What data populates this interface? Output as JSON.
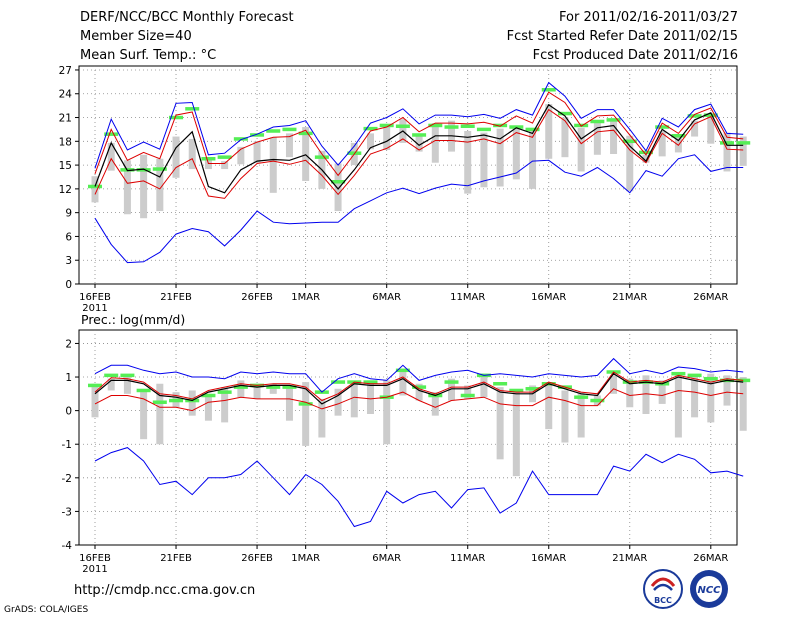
{
  "header": {
    "title": "DERF/NCC/BCC Monthly Forecast",
    "member_size": "Member Size=40",
    "variable": "Mean Surf. Temp.: °C",
    "period": "For 2011/02/16-2011/03/27",
    "refer_date": "Fcst Started Refer Date 2011/02/15",
    "produced_date": "Fcst Produced Date 2011/02/16"
  },
  "footer": {
    "url": "http://cmdp.ncc.cma.gov.cn",
    "credit": "GrADS: COLA/IGES",
    "logo_left_text": "BCC",
    "logo_right_text": "NCC"
  },
  "colors": {
    "envelope": "#0000ee",
    "spread": "#dd0000",
    "mean": "#000000",
    "observed_bar": "#cccccc",
    "climatology": "#55ee55"
  },
  "chart_data": [
    {
      "type": "line",
      "title": "Mean Surf. Temp.: °C",
      "x_tick_labels": [
        "16FEB",
        "21FEB",
        "26FEB",
        "1MAR",
        "6MAR",
        "11MAR",
        "16MAR",
        "21MAR",
        "26MAR"
      ],
      "x_tick_days": [
        0,
        5,
        10,
        13,
        18,
        23,
        28,
        33,
        38
      ],
      "year_label": "2011",
      "xlim": [
        0,
        39
      ],
      "ylim": [
        0,
        27.5
      ],
      "y_ticks": [
        0,
        3,
        6,
        9,
        12,
        15,
        18,
        21,
        24,
        27
      ],
      "series": [
        {
          "name": "max",
          "values": [
            14.6,
            20.8,
            16.9,
            17.9,
            17.0,
            22.8,
            22.9,
            16.3,
            16.5,
            18.2,
            18.9,
            19.8,
            20.0,
            20.6,
            17.4,
            15.0,
            17.4,
            20.3,
            21.0,
            22.1,
            20.2,
            21.3,
            21.3,
            21.1,
            21.4,
            20.9,
            22.0,
            21.3,
            25.4,
            23.7,
            20.9,
            22.0,
            22.0,
            19.5,
            16.8,
            20.9,
            19.8,
            22.0,
            22.7,
            19.0,
            18.9
          ]
        },
        {
          "name": "upper",
          "values": [
            13.9,
            19.5,
            15.6,
            16.6,
            15.8,
            21.3,
            21.7,
            15.2,
            15.2,
            17.0,
            17.9,
            18.5,
            18.6,
            19.4,
            16.4,
            13.7,
            16.4,
            19.3,
            19.8,
            21.0,
            19.2,
            20.3,
            20.3,
            20.2,
            20.4,
            19.9,
            21.2,
            20.3,
            24.2,
            22.9,
            19.9,
            21.2,
            21.3,
            18.8,
            16.3,
            20.3,
            19.0,
            21.4,
            22.2,
            18.5,
            18.3
          ]
        },
        {
          "name": "mean",
          "values": [
            12.3,
            17.8,
            14.3,
            14.5,
            13.5,
            17.2,
            19.2,
            12.3,
            11.5,
            14.4,
            15.5,
            15.7,
            15.6,
            16.3,
            14.4,
            12.0,
            14.4,
            17.2,
            18.0,
            19.3,
            17.5,
            18.7,
            18.7,
            18.5,
            18.8,
            18.3,
            19.7,
            19.0,
            22.6,
            21.2,
            18.3,
            19.7,
            20.0,
            17.4,
            15.5,
            19.5,
            18.1,
            20.7,
            21.6,
            17.5,
            17.5
          ]
        },
        {
          "name": "lower",
          "values": [
            11.3,
            15.8,
            12.7,
            13.0,
            12.0,
            14.7,
            15.8,
            11.1,
            10.8,
            13.3,
            15.2,
            15.5,
            15.1,
            15.6,
            13.7,
            11.3,
            13.7,
            16.4,
            17.1,
            18.3,
            16.9,
            18.1,
            18.1,
            17.9,
            18.3,
            17.7,
            19.1,
            18.5,
            22.0,
            20.6,
            17.7,
            19.2,
            19.4,
            16.9,
            15.3,
            19.0,
            17.5,
            20.2,
            21.1,
            17.0,
            16.9
          ]
        },
        {
          "name": "min",
          "values": [
            8.3,
            5.0,
            2.7,
            2.8,
            4.0,
            6.3,
            7.0,
            6.6,
            4.8,
            6.8,
            9.2,
            7.8,
            7.6,
            7.7,
            7.8,
            7.8,
            9.5,
            10.5,
            11.5,
            12.1,
            11.4,
            12.1,
            12.6,
            12.4,
            13.0,
            13.5,
            14.0,
            15.5,
            15.6,
            14.1,
            13.6,
            14.7,
            13.3,
            11.5,
            14.3,
            13.6,
            15.8,
            16.3,
            14.2,
            14.7,
            14.7
          ]
        },
        {
          "name": "observed_bar_top",
          "values": [
            13.6,
            17.8,
            15.6,
            16.3,
            15.8,
            18.6,
            18.3,
            16.0,
            15.5,
            17.3,
            18.0,
            18.5,
            19.0,
            19.8,
            16.8,
            15.2,
            17.8,
            19.0,
            19.8,
            20.8,
            18.9,
            20.3,
            20.6,
            19.3,
            19.1,
            19.6,
            20.0,
            19.5,
            22.7,
            21.0,
            19.7,
            20.4,
            20.6,
            18.7,
            16.3,
            19.3,
            18.6,
            20.6,
            21.2,
            19.1,
            18.6
          ]
        },
        {
          "name": "observed_bar_bottom",
          "values": [
            10.3,
            14.3,
            8.8,
            8.3,
            9.2,
            13.4,
            14.5,
            14.5,
            14.5,
            15.1,
            15.3,
            11.5,
            16.0,
            13.0,
            12.0,
            9.2,
            15.0,
            17.0,
            16.9,
            17.8,
            16.7,
            15.3,
            16.7,
            11.4,
            12.2,
            12.3,
            13.2,
            12.0,
            15.8,
            16.0,
            14.2,
            16.3,
            16.4,
            11.7,
            15.3,
            16.1,
            16.6,
            18.6,
            17.7,
            14.2,
            14.9
          ]
        },
        {
          "name": "climatology",
          "values": [
            12.3,
            18.9,
            14.4,
            14.4,
            14.5,
            21.0,
            22.1,
            15.8,
            16.0,
            18.3,
            18.8,
            19.3,
            19.5,
            19.0,
            16.0,
            12.9,
            16.5,
            19.6,
            20.0,
            19.9,
            18.8,
            20.0,
            19.8,
            19.9,
            19.5,
            20.0,
            19.8,
            19.5,
            24.5,
            21.5,
            20.0,
            20.5,
            20.7,
            18.0,
            16.6,
            19.8,
            18.7,
            21.2,
            21.3,
            17.8,
            17.8
          ]
        }
      ]
    },
    {
      "type": "line",
      "title": "Prec.: log(mm/d)",
      "x_tick_labels": [
        "16FEB",
        "21FEB",
        "26FEB",
        "1MAR",
        "6MAR",
        "11MAR",
        "16MAR",
        "21MAR",
        "26MAR"
      ],
      "x_tick_days": [
        0,
        5,
        10,
        13,
        18,
        23,
        28,
        33,
        38
      ],
      "year_label": "2011",
      "xlim": [
        0,
        39
      ],
      "ylim": [
        -4,
        2.4
      ],
      "y_ticks": [
        -4,
        -3,
        -2,
        -1,
        0,
        1,
        2
      ],
      "series": [
        {
          "name": "max",
          "values": [
            1.1,
            1.35,
            1.35,
            1.2,
            1.1,
            1.15,
            1.0,
            1.0,
            0.95,
            1.15,
            1.1,
            1.15,
            1.1,
            1.1,
            0.55,
            0.95,
            1.1,
            0.95,
            0.9,
            1.35,
            0.9,
            1.05,
            1.15,
            1.2,
            1.05,
            1.1,
            1.05,
            1.0,
            1.1,
            1.05,
            1.0,
            1.05,
            1.55,
            1.1,
            1.2,
            1.1,
            1.3,
            1.25,
            1.15,
            1.2,
            1.15
          ]
        },
        {
          "name": "upper",
          "values": [
            0.55,
            0.98,
            0.95,
            0.85,
            0.5,
            0.45,
            0.35,
            0.6,
            0.7,
            0.8,
            0.75,
            0.8,
            0.8,
            0.7,
            0.3,
            0.5,
            0.85,
            0.8,
            0.8,
            1.0,
            0.65,
            0.5,
            0.7,
            0.7,
            0.85,
            0.6,
            0.55,
            0.55,
            0.85,
            0.7,
            0.55,
            0.5,
            1.15,
            0.85,
            0.9,
            0.85,
            1.05,
            0.95,
            0.85,
            0.95,
            0.9
          ]
        },
        {
          "name": "mean",
          "values": [
            0.5,
            0.9,
            0.9,
            0.8,
            0.45,
            0.4,
            0.3,
            0.55,
            0.65,
            0.75,
            0.7,
            0.75,
            0.75,
            0.65,
            0.2,
            0.45,
            0.8,
            0.75,
            0.75,
            0.95,
            0.6,
            0.45,
            0.65,
            0.65,
            0.8,
            0.55,
            0.5,
            0.5,
            0.8,
            0.65,
            0.5,
            0.45,
            1.1,
            0.8,
            0.85,
            0.8,
            1.0,
            0.9,
            0.8,
            0.9,
            0.85
          ]
        },
        {
          "name": "lower",
          "values": [
            0.2,
            0.45,
            0.45,
            0.35,
            0.1,
            0.1,
            0.0,
            0.25,
            0.3,
            0.4,
            0.35,
            0.35,
            0.35,
            0.25,
            0.05,
            0.2,
            0.4,
            0.35,
            0.4,
            0.55,
            0.3,
            0.1,
            0.3,
            0.35,
            0.4,
            0.2,
            0.15,
            0.15,
            0.4,
            0.3,
            0.15,
            0.15,
            0.65,
            0.45,
            0.5,
            0.45,
            0.6,
            0.55,
            0.45,
            0.55,
            0.5
          ]
        },
        {
          "name": "min",
          "values": [
            -1.5,
            -1.25,
            -1.1,
            -1.5,
            -2.2,
            -2.1,
            -2.5,
            -2.0,
            -2.0,
            -1.9,
            -1.5,
            -2.0,
            -2.5,
            -1.9,
            -2.2,
            -2.7,
            -3.45,
            -3.3,
            -2.4,
            -2.75,
            -2.5,
            -2.4,
            -2.9,
            -2.35,
            -2.3,
            -3.05,
            -2.75,
            -1.8,
            -2.5,
            -2.5,
            -2.5,
            -2.5,
            -1.65,
            -1.8,
            -1.3,
            -1.55,
            -1.3,
            -1.45,
            -1.85,
            -1.8,
            -1.95
          ]
        },
        {
          "name": "observed_bar_top",
          "values": [
            0.8,
            0.95,
            1.0,
            0.6,
            0.8,
            0.55,
            0.6,
            0.5,
            0.7,
            0.9,
            0.8,
            0.8,
            0.75,
            0.85,
            0.35,
            0.65,
            0.85,
            0.9,
            0.9,
            1.2,
            0.8,
            0.55,
            0.95,
            0.75,
            1.1,
            0.7,
            0.6,
            0.75,
            0.75,
            0.6,
            0.55,
            0.45,
            1.05,
            0.95,
            1.05,
            0.9,
            1.05,
            1.05,
            1.1,
            1.05,
            1.0
          ]
        },
        {
          "name": "observed_bar_bottom",
          "values": [
            -0.2,
            0.6,
            0.5,
            -0.85,
            -1.0,
            0.1,
            -0.15,
            -0.3,
            -0.35,
            0.4,
            0.35,
            0.5,
            -0.3,
            -1.05,
            -0.8,
            -0.15,
            -0.2,
            -0.1,
            -1.0,
            0.45,
            0.3,
            -0.15,
            0.3,
            0.35,
            0.4,
            -1.45,
            -1.95,
            0.25,
            -0.55,
            -0.95,
            -0.8,
            0.15,
            0.5,
            0.1,
            -0.1,
            0.2,
            -0.8,
            -0.2,
            -0.35,
            0.15,
            -0.6
          ]
        },
        {
          "name": "climatology",
          "values": [
            0.75,
            1.05,
            1.05,
            0.6,
            0.25,
            0.3,
            0.3,
            0.45,
            0.55,
            0.7,
            0.75,
            0.7,
            0.7,
            0.2,
            0.55,
            0.85,
            0.85,
            0.85,
            0.4,
            1.2,
            0.7,
            0.45,
            0.85,
            0.45,
            1.05,
            0.8,
            0.6,
            0.65,
            0.8,
            0.7,
            0.4,
            0.3,
            1.15,
            0.85,
            0.85,
            0.8,
            1.1,
            1.05,
            0.95,
            0.9,
            0.9
          ]
        }
      ]
    }
  ]
}
